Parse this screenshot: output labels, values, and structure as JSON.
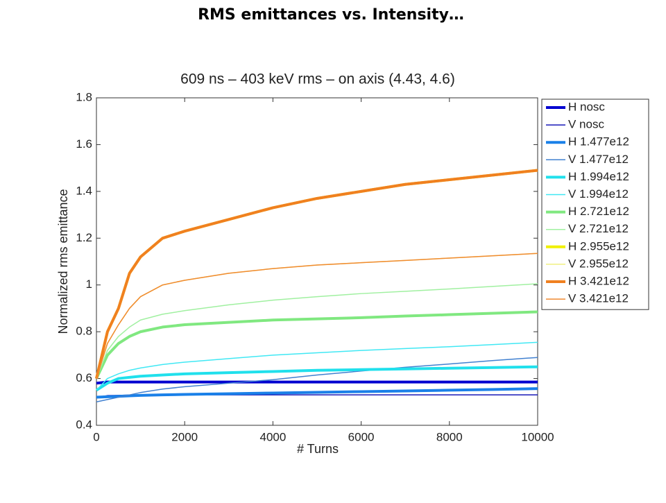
{
  "slide_title": "RMS emittances vs. Intensity…",
  "chart_data": {
    "type": "line",
    "title": "609 ns – 403 keV rms – on axis (4.43, 4.6)",
    "x_label": "# Turns",
    "y_label": "Normalized rms emittance",
    "x": [
      0,
      250,
      500,
      750,
      1000,
      1500,
      2000,
      3000,
      4000,
      5000,
      6000,
      7000,
      8000,
      9000,
      10000
    ],
    "xlim": [
      0,
      10000
    ],
    "xticks": [
      0,
      2000,
      4000,
      6000,
      8000,
      10000
    ],
    "ylim": [
      0.4,
      1.8
    ],
    "yticks": [
      0.4,
      0.6,
      0.8,
      1,
      1.2,
      1.4,
      1.6,
      1.8
    ],
    "legend": "outside-right",
    "series": [
      {
        "name": "H nosc",
        "color": "#0000d0",
        "linewidth": 4,
        "values": [
          0.58,
          0.585,
          0.585,
          0.585,
          0.585,
          0.585,
          0.585,
          0.585,
          0.585,
          0.585,
          0.585,
          0.585,
          0.585,
          0.585,
          0.585
        ]
      },
      {
        "name": "V nosc",
        "color": "#1818b8",
        "linewidth": 1.5,
        "values": [
          0.52,
          0.527,
          0.528,
          0.529,
          0.53,
          0.53,
          0.53,
          0.53,
          0.53,
          0.53,
          0.53,
          0.53,
          0.53,
          0.53,
          0.53
        ]
      },
      {
        "name": "H 1.477e12",
        "color": "#1a80e8",
        "linewidth": 4,
        "values": [
          0.52,
          0.522,
          0.524,
          0.526,
          0.528,
          0.53,
          0.532,
          0.535,
          0.538,
          0.541,
          0.544,
          0.547,
          0.55,
          0.553,
          0.557
        ]
      },
      {
        "name": "V 1.477e12",
        "color": "#4080d0",
        "linewidth": 1.5,
        "values": [
          0.5,
          0.51,
          0.52,
          0.53,
          0.54,
          0.555,
          0.565,
          0.58,
          0.595,
          0.615,
          0.632,
          0.648,
          0.662,
          0.677,
          0.69
        ]
      },
      {
        "name": "H 1.994e12",
        "color": "#20e0ec",
        "linewidth": 4,
        "values": [
          0.55,
          0.58,
          0.6,
          0.605,
          0.61,
          0.615,
          0.62,
          0.625,
          0.63,
          0.635,
          0.638,
          0.641,
          0.644,
          0.647,
          0.65
        ]
      },
      {
        "name": "V 1.994e12",
        "color": "#40e8f4",
        "linewidth": 1.5,
        "values": [
          0.55,
          0.6,
          0.62,
          0.635,
          0.645,
          0.66,
          0.67,
          0.685,
          0.7,
          0.71,
          0.72,
          0.728,
          0.736,
          0.745,
          0.755
        ]
      },
      {
        "name": "H 2.721e12",
        "color": "#80e880",
        "linewidth": 4,
        "values": [
          0.6,
          0.7,
          0.75,
          0.78,
          0.8,
          0.82,
          0.83,
          0.84,
          0.85,
          0.855,
          0.86,
          0.867,
          0.873,
          0.879,
          0.885
        ]
      },
      {
        "name": "V 2.721e12",
        "color": "#a0f0a0",
        "linewidth": 1.5,
        "values": [
          0.6,
          0.72,
          0.78,
          0.82,
          0.85,
          0.875,
          0.89,
          0.915,
          0.935,
          0.95,
          0.963,
          0.973,
          0.983,
          0.994,
          1.005
        ]
      },
      {
        "name": "H 2.955e12",
        "color": "#f0f000",
        "linewidth": 4,
        "values": [
          0.6,
          0.8,
          0.9,
          1.05,
          1.12,
          1.2,
          1.23,
          1.28,
          1.33,
          1.37,
          1.4,
          1.43,
          1.45,
          1.47,
          1.49
        ]
      },
      {
        "name": "V 2.955e12",
        "color": "#f0f080",
        "linewidth": 1.5,
        "values": [
          0.6,
          0.75,
          0.83,
          0.9,
          0.95,
          1.0,
          1.02,
          1.05,
          1.07,
          1.085,
          1.095,
          1.105,
          1.115,
          1.125,
          1.135
        ]
      },
      {
        "name": "H 3.421e12",
        "color": "#f08020",
        "linewidth": 4,
        "values": [
          0.6,
          0.8,
          0.9,
          1.05,
          1.12,
          1.2,
          1.23,
          1.28,
          1.33,
          1.37,
          1.4,
          1.43,
          1.45,
          1.47,
          1.49
        ]
      },
      {
        "name": "V 3.421e12",
        "color": "#f08a30",
        "linewidth": 1.5,
        "values": [
          0.6,
          0.75,
          0.83,
          0.9,
          0.95,
          1.0,
          1.02,
          1.05,
          1.07,
          1.085,
          1.095,
          1.105,
          1.115,
          1.125,
          1.135
        ]
      }
    ]
  }
}
